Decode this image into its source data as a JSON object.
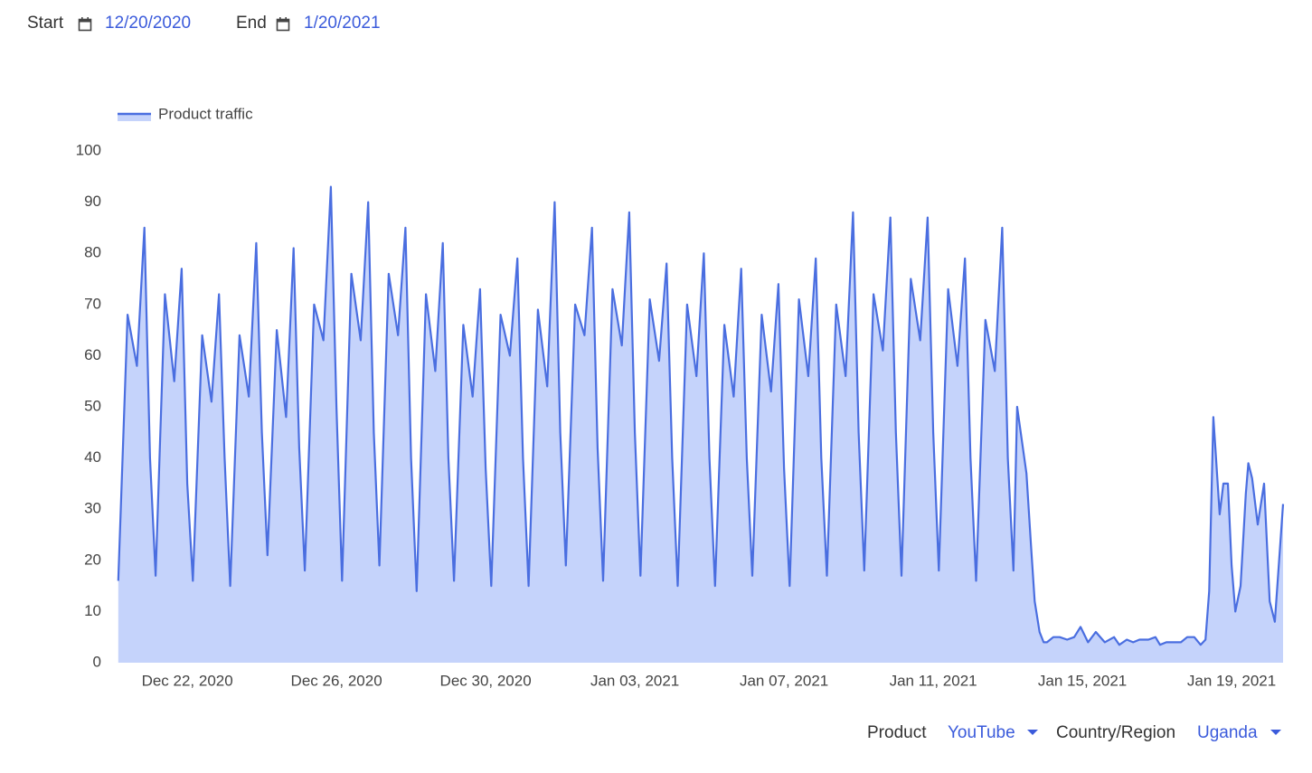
{
  "header": {
    "start_label": "Start",
    "start_date": "12/20/2020",
    "end_label": "End",
    "end_date": "1/20/2021"
  },
  "chart_data": {
    "type": "area",
    "x": [
      0.15,
      0.4,
      0.65,
      0.85,
      1,
      1.15,
      1.4,
      1.65,
      1.85,
      2,
      2.15,
      2.4,
      2.65,
      2.85,
      3,
      3.15,
      3.4,
      3.65,
      3.85,
      4,
      4.15,
      4.4,
      4.65,
      4.85,
      5,
      5.15,
      5.4,
      5.65,
      5.85,
      6,
      6.15,
      6.4,
      6.65,
      6.85,
      7,
      7.15,
      7.4,
      7.65,
      7.85,
      8,
      8.15,
      8.4,
      8.65,
      8.85,
      9,
      9.15,
      9.4,
      9.65,
      9.85,
      10,
      10.15,
      10.4,
      10.65,
      10.85,
      11,
      11.15,
      11.4,
      11.65,
      11.85,
      12,
      12.15,
      12.4,
      12.65,
      12.85,
      13,
      13.15,
      13.4,
      13.65,
      13.85,
      14,
      14.15,
      14.4,
      14.65,
      14.85,
      15,
      15.15,
      15.4,
      15.65,
      15.85,
      16,
      16.15,
      16.4,
      16.65,
      16.85,
      17,
      17.15,
      17.4,
      17.65,
      17.85,
      18,
      18.15,
      18.4,
      18.65,
      18.85,
      19,
      19.15,
      19.4,
      19.65,
      19.85,
      20,
      20.15,
      20.4,
      20.65,
      20.85,
      21,
      21.15,
      21.4,
      21.65,
      21.85,
      22,
      22.15,
      22.4,
      22.65,
      22.85,
      23,
      23.15,
      23.4,
      23.65,
      23.85,
      24,
      24.15,
      24.25,
      24.5,
      24.62,
      24.72,
      24.85,
      24.96,
      25.05,
      25.22,
      25.39,
      25.59,
      25.78,
      25.95,
      26.15,
      26.36,
      26.6,
      26.85,
      26.99,
      27.19,
      27.36,
      27.53,
      27.77,
      27.96,
      28.08,
      28.25,
      28.45,
      28.64,
      28.81,
      29.0,
      29.17,
      29.3,
      29.4,
      29.51,
      29.68,
      29.78,
      29.9,
      30.0,
      30.1,
      30.24,
      30.38,
      30.45,
      30.55,
      30.7,
      30.87,
      31.02,
      31.16,
      31.38
    ],
    "series": [
      {
        "name": "Product traffic",
        "color": "#4a6ee0",
        "fill_color": "#c5d3fb",
        "values": [
          16,
          68,
          58,
          85,
          40,
          17,
          72,
          55,
          77,
          35,
          16,
          64,
          51,
          72,
          40,
          15,
          64,
          52,
          82,
          45,
          21,
          65,
          48,
          81,
          42,
          18,
          70,
          63,
          93,
          50,
          16,
          76,
          63,
          90,
          45,
          19,
          76,
          64,
          85,
          40,
          14,
          72,
          57,
          82,
          40,
          16,
          66,
          52,
          73,
          38,
          15,
          68,
          60,
          79,
          40,
          15,
          69,
          54,
          90,
          45,
          19,
          70,
          64,
          85,
          42,
          16,
          73,
          62,
          88,
          45,
          17,
          71,
          59,
          78,
          40,
          15,
          70,
          56,
          80,
          40,
          15,
          66,
          52,
          77,
          40,
          17,
          68,
          53,
          74,
          38,
          15,
          71,
          56,
          79,
          40,
          17,
          70,
          56,
          88,
          45,
          18,
          72,
          61,
          87,
          45,
          17,
          75,
          63,
          87,
          45,
          18,
          73,
          58,
          79,
          40,
          16,
          67,
          57,
          85,
          40,
          18,
          50,
          37,
          23,
          12,
          6,
          4,
          4,
          5,
          5,
          4.5,
          5,
          7,
          4,
          6,
          4,
          5,
          3.5,
          4.5,
          4,
          4.5,
          4.5,
          5,
          3.5,
          4,
          4,
          4,
          5,
          5,
          3.5,
          4.5,
          14,
          48,
          29,
          35,
          35,
          19,
          10,
          15,
          33,
          39,
          36,
          27,
          35,
          12,
          8,
          31
        ]
      }
    ],
    "xlim": [
      0.13,
      31.38
    ],
    "xticks": [
      {
        "value": 2,
        "label": "Dec 22, 2020"
      },
      {
        "value": 6,
        "label": "Dec 26, 2020"
      },
      {
        "value": 10,
        "label": "Dec 30, 2020"
      },
      {
        "value": 14,
        "label": "Jan 03, 2021"
      },
      {
        "value": 18,
        "label": "Jan 07, 2021"
      },
      {
        "value": 22,
        "label": "Jan 11, 2021"
      },
      {
        "value": 26,
        "label": "Jan 15, 2021"
      },
      {
        "value": 30,
        "label": "Jan 19, 2021"
      }
    ],
    "ylim": [
      0,
      100
    ],
    "yticks": [
      0,
      10,
      20,
      30,
      40,
      50,
      60,
      70,
      80,
      90,
      100
    ],
    "grid": false
  },
  "footer": {
    "product_label": "Product",
    "product": "YouTube",
    "region_label": "Country/Region",
    "region": "Uganda"
  }
}
